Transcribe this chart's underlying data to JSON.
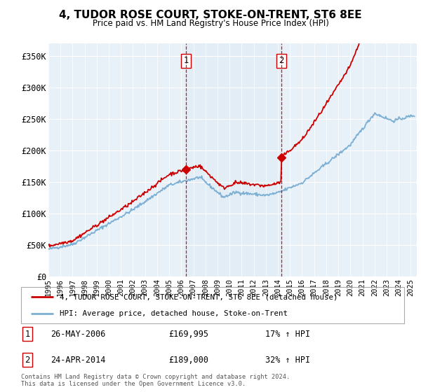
{
  "title": "4, TUDOR ROSE COURT, STOKE-ON-TRENT, ST6 8EE",
  "subtitle": "Price paid vs. HM Land Registry's House Price Index (HPI)",
  "xlim_start": 1995.0,
  "xlim_end": 2025.5,
  "ylim": [
    0,
    370000
  ],
  "yticks": [
    0,
    50000,
    100000,
    150000,
    200000,
    250000,
    300000,
    350000
  ],
  "ytick_labels": [
    "£0",
    "£50K",
    "£100K",
    "£150K",
    "£200K",
    "£250K",
    "£300K",
    "£350K"
  ],
  "transaction1_x": 2006.4,
  "transaction1_y": 169995,
  "transaction1_label": "1",
  "transaction1_date": "26-MAY-2006",
  "transaction1_price": "£169,995",
  "transaction1_hpi": "17% ↑ HPI",
  "transaction2_x": 2014.3,
  "transaction2_y": 189000,
  "transaction2_label": "2",
  "transaction2_date": "24-APR-2014",
  "transaction2_price": "£189,000",
  "transaction2_hpi": "32% ↑ HPI",
  "hpi_color": "#7bafd4",
  "price_color": "#cc0000",
  "vline_color": "#cc0000",
  "shade_color": "#d8e8f5",
  "background_color": "#e8f0f8",
  "legend_line1": "4, TUDOR ROSE COURT, STOKE-ON-TRENT, ST6 8EE (detached house)",
  "legend_line2": "HPI: Average price, detached house, Stoke-on-Trent",
  "footnote": "Contains HM Land Registry data © Crown copyright and database right 2024.\nThis data is licensed under the Open Government Licence v3.0."
}
